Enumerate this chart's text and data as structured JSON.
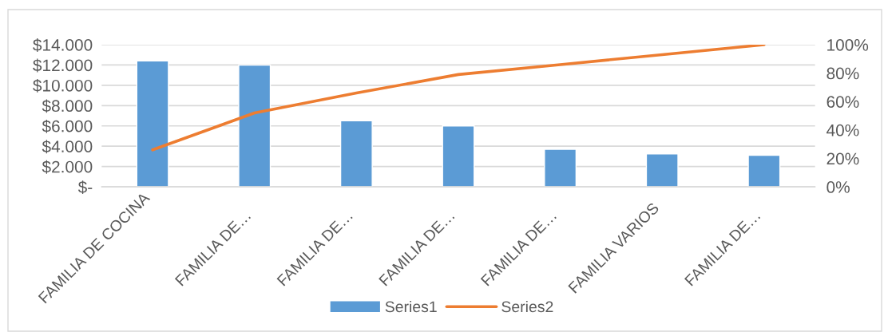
{
  "chart_data": {
    "type": "bar",
    "categories": [
      "FAMILIA DE COCINA",
      "FAMILIA DE…",
      "FAMILIA DE…",
      "FAMILIA DE…",
      "FAMILIA DE…",
      "FAMILIA VARIOS",
      "FAMILIA DE…"
    ],
    "series": [
      {
        "name": "Series1",
        "color": "#5b9bd5",
        "values": [
          12400,
          12000,
          6500,
          6000,
          3700,
          3250,
          3100
        ]
      },
      {
        "name": "Series2",
        "type": "line",
        "axis": "y2",
        "color": "#ed7d31",
        "values": [
          26,
          52,
          66,
          79,
          86,
          93,
          100
        ]
      }
    ],
    "ylim": [
      0,
      14000
    ],
    "yticks": [
      {
        "value": 0,
        "label": "$-"
      },
      {
        "value": 2000,
        "label": "$2.000"
      },
      {
        "value": 4000,
        "label": "$4.000"
      },
      {
        "value": 6000,
        "label": "$6.000"
      },
      {
        "value": 8000,
        "label": "$8.000"
      },
      {
        "value": 10000,
        "label": "$10.000"
      },
      {
        "value": 12000,
        "label": "$12.000"
      },
      {
        "value": 14000,
        "label": "$14.000"
      }
    ],
    "y2lim": [
      0,
      100
    ],
    "y2ticks": [
      {
        "value": 0,
        "label": "0%"
      },
      {
        "value": 20,
        "label": "20%"
      },
      {
        "value": 40,
        "label": "40%"
      },
      {
        "value": 60,
        "label": "60%"
      },
      {
        "value": 80,
        "label": "80%"
      },
      {
        "value": 100,
        "label": "100%"
      }
    ],
    "grid": "y",
    "legend": "bottom",
    "line_style": "solid"
  }
}
